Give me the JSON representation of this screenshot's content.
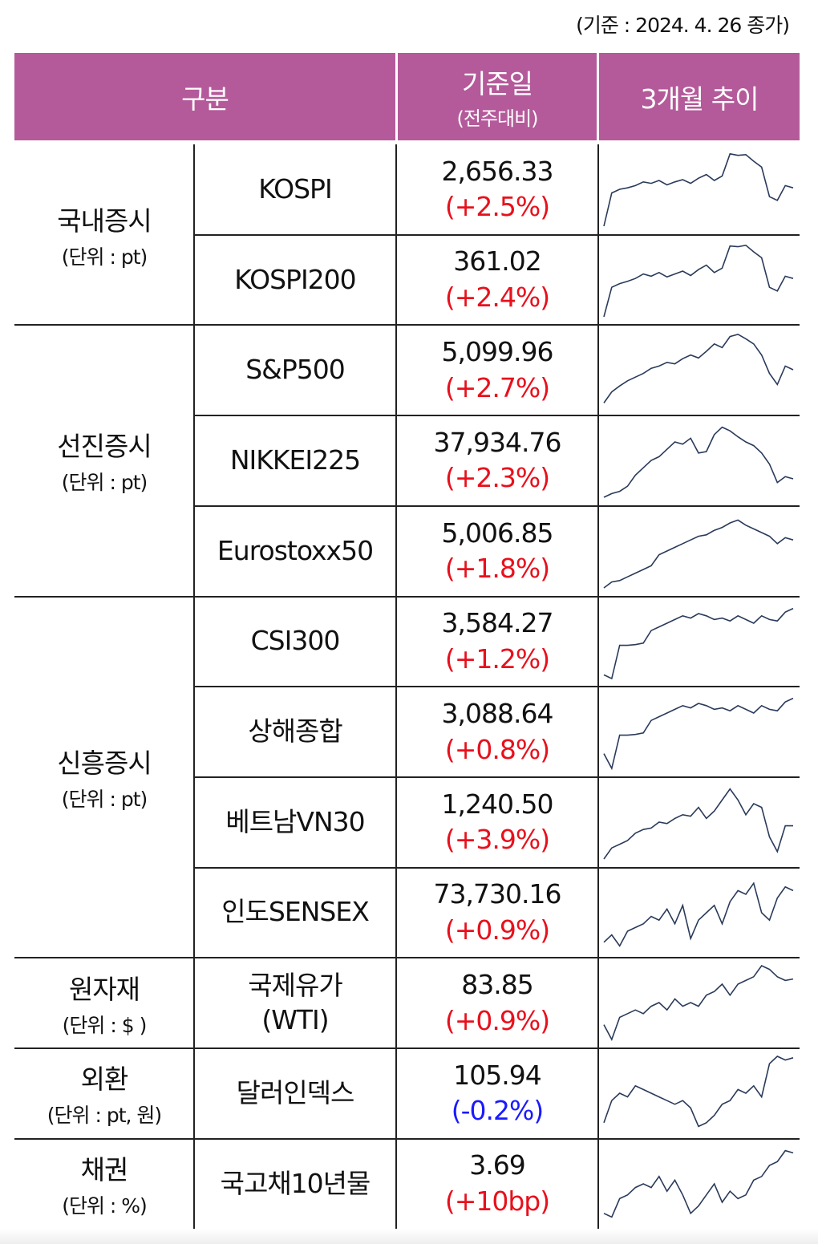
{
  "basis_note": "(기준 : 2024. 4. 26 종가)",
  "header": {
    "category": "구분",
    "date_main": "기준일",
    "date_sub": "(전주대비)",
    "trend": "3개월 추이"
  },
  "colors": {
    "header_bg": "#b45a9a",
    "up": "#e8101c",
    "down": "#1a1aff",
    "line": "#2a3a5a"
  },
  "groups": [
    {
      "label": "국내증시",
      "unit": "(단위 : pt)"
    },
    {
      "label": "선진증시",
      "unit": "(단위 : pt)"
    },
    {
      "label": "신흥증시",
      "unit": "(단위 : pt)"
    },
    {
      "label": "원자재",
      "unit": "(단위 : $ )"
    },
    {
      "label": "외환",
      "unit": "(단위 : pt, 원)"
    },
    {
      "label": "채권",
      "unit": "(단위 : %)"
    }
  ],
  "rows": [
    {
      "name": "KOSPI",
      "value": "2,656.33",
      "change": "(+2.5%)",
      "dir": "up",
      "trend": [
        0,
        45,
        50,
        52,
        55,
        60,
        58,
        62,
        56,
        60,
        63,
        58,
        65,
        70,
        62,
        68,
        98,
        96,
        97,
        88,
        80,
        40,
        35,
        55,
        52
      ]
    },
    {
      "name": "KOSPI200",
      "value": "361.02",
      "change": "(+2.4%)",
      "dir": "up",
      "trend": [
        0,
        40,
        45,
        48,
        52,
        58,
        55,
        60,
        54,
        58,
        62,
        56,
        64,
        70,
        60,
        66,
        96,
        95,
        97,
        88,
        80,
        40,
        35,
        55,
        52
      ]
    },
    {
      "name": "S&P500",
      "value": "5,099.96",
      "change": "(+2.7%)",
      "dir": "up",
      "trend": [
        5,
        20,
        28,
        35,
        40,
        45,
        52,
        55,
        60,
        58,
        65,
        70,
        66,
        75,
        85,
        80,
        95,
        98,
        92,
        85,
        70,
        45,
        30,
        55,
        50
      ]
    },
    {
      "name": "NIKKEI225",
      "value": "37,934.76",
      "change": "(+2.3%)",
      "dir": "up",
      "trend": [
        0,
        5,
        8,
        15,
        30,
        40,
        50,
        55,
        65,
        75,
        72,
        80,
        60,
        62,
        85,
        95,
        90,
        82,
        75,
        70,
        60,
        45,
        20,
        28,
        25
      ]
    },
    {
      "name": "Eurostoxx50",
      "value": "5,006.85",
      "change": "(+1.8%)",
      "dir": "up",
      "trend": [
        0,
        8,
        10,
        15,
        20,
        25,
        30,
        45,
        50,
        55,
        60,
        65,
        70,
        72,
        78,
        82,
        88,
        92,
        85,
        80,
        75,
        70,
        60,
        68,
        65
      ]
    },
    {
      "name": "CSI300",
      "value": "3,584.27",
      "change": "(+1.2%)",
      "dir": "up",
      "trend": [
        5,
        0,
        45,
        45,
        46,
        48,
        65,
        70,
        75,
        80,
        85,
        82,
        88,
        85,
        80,
        82,
        78,
        85,
        80,
        75,
        85,
        80,
        78,
        90,
        95
      ]
    },
    {
      "name": "상해종합",
      "value": "3,088.64",
      "change": "(+0.8%)",
      "dir": "up",
      "trend": [
        20,
        0,
        45,
        45,
        46,
        48,
        65,
        70,
        75,
        80,
        85,
        82,
        88,
        85,
        80,
        82,
        78,
        85,
        80,
        75,
        85,
        80,
        78,
        90,
        95
      ]
    },
    {
      "name": "베트남VN30",
      "value": "1,240.50",
      "change": "(+3.9%)",
      "dir": "up",
      "trend": [
        0,
        15,
        20,
        25,
        35,
        40,
        42,
        50,
        48,
        55,
        60,
        58,
        70,
        55,
        65,
        80,
        95,
        80,
        60,
        75,
        70,
        30,
        10,
        45,
        45
      ]
    },
    {
      "name": "인도SENSEX",
      "value": "73,730.16",
      "change": "(+0.9%)",
      "dir": "up",
      "trend": [
        10,
        20,
        5,
        25,
        30,
        35,
        45,
        40,
        55,
        35,
        60,
        15,
        40,
        50,
        60,
        35,
        65,
        80,
        75,
        90,
        50,
        40,
        70,
        85,
        80
      ]
    },
    {
      "name": "국제유가\n(WTI)",
      "value": "83.85",
      "change": "(+0.9%)",
      "dir": "up",
      "trend": [
        20,
        0,
        30,
        35,
        40,
        35,
        45,
        50,
        40,
        55,
        45,
        50,
        45,
        60,
        65,
        75,
        60,
        75,
        80,
        85,
        100,
        95,
        85,
        80,
        82
      ]
    },
    {
      "name": "달러인덱스",
      "value": "105.94",
      "change": "(-0.2%)",
      "dir": "down",
      "trend": [
        10,
        40,
        50,
        45,
        60,
        55,
        50,
        45,
        40,
        35,
        40,
        30,
        5,
        10,
        20,
        35,
        40,
        55,
        50,
        60,
        45,
        90,
        100,
        95,
        98
      ]
    },
    {
      "name": "국고채10년물",
      "value": "3.69",
      "change": "(+10bp)",
      "dir": "up",
      "trend": [
        10,
        5,
        30,
        35,
        45,
        50,
        45,
        60,
        40,
        55,
        35,
        10,
        20,
        35,
        50,
        25,
        40,
        30,
        35,
        55,
        60,
        75,
        80,
        95,
        92
      ]
    }
  ]
}
